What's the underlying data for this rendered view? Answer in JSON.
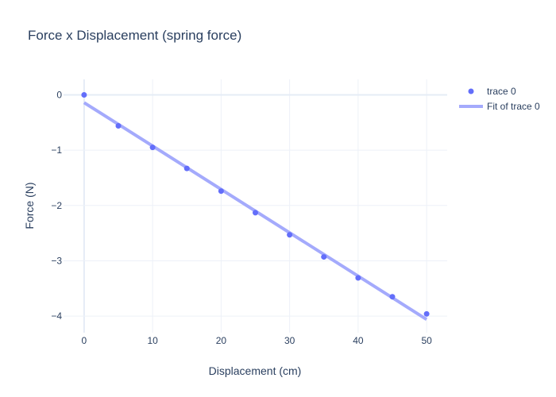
{
  "chart_data": {
    "type": "scatter",
    "title": "Force x Displacement (spring force)",
    "xlabel": "Displacement (cm)",
    "ylabel": "Force (N)",
    "xlim": [
      -3,
      53
    ],
    "ylim": [
      -4.3,
      0.28
    ],
    "x_ticks": [
      0,
      10,
      20,
      30,
      40,
      50
    ],
    "y_ticks": [
      0,
      -1,
      -2,
      -3,
      -4
    ],
    "x_tick_labels": [
      "0",
      "10",
      "20",
      "30",
      "40",
      "50"
    ],
    "y_tick_labels": [
      "0",
      "−1",
      "−2",
      "−3",
      "−4"
    ],
    "grid": true,
    "legend_position": "top-right",
    "series": [
      {
        "name": "trace 0",
        "mode": "markers",
        "color": "#636efa",
        "x": [
          0,
          5,
          10,
          15,
          20,
          25,
          30,
          35,
          40,
          45,
          50
        ],
        "y": [
          0,
          -0.56,
          -0.95,
          -1.33,
          -1.74,
          -2.13,
          -2.53,
          -2.93,
          -3.31,
          -3.65,
          -3.96
        ]
      },
      {
        "name": "Fit of trace 0",
        "mode": "line",
        "color": "#a4aafc",
        "x": [
          0,
          50
        ],
        "y": [
          -0.14,
          -4.06
        ]
      }
    ]
  }
}
